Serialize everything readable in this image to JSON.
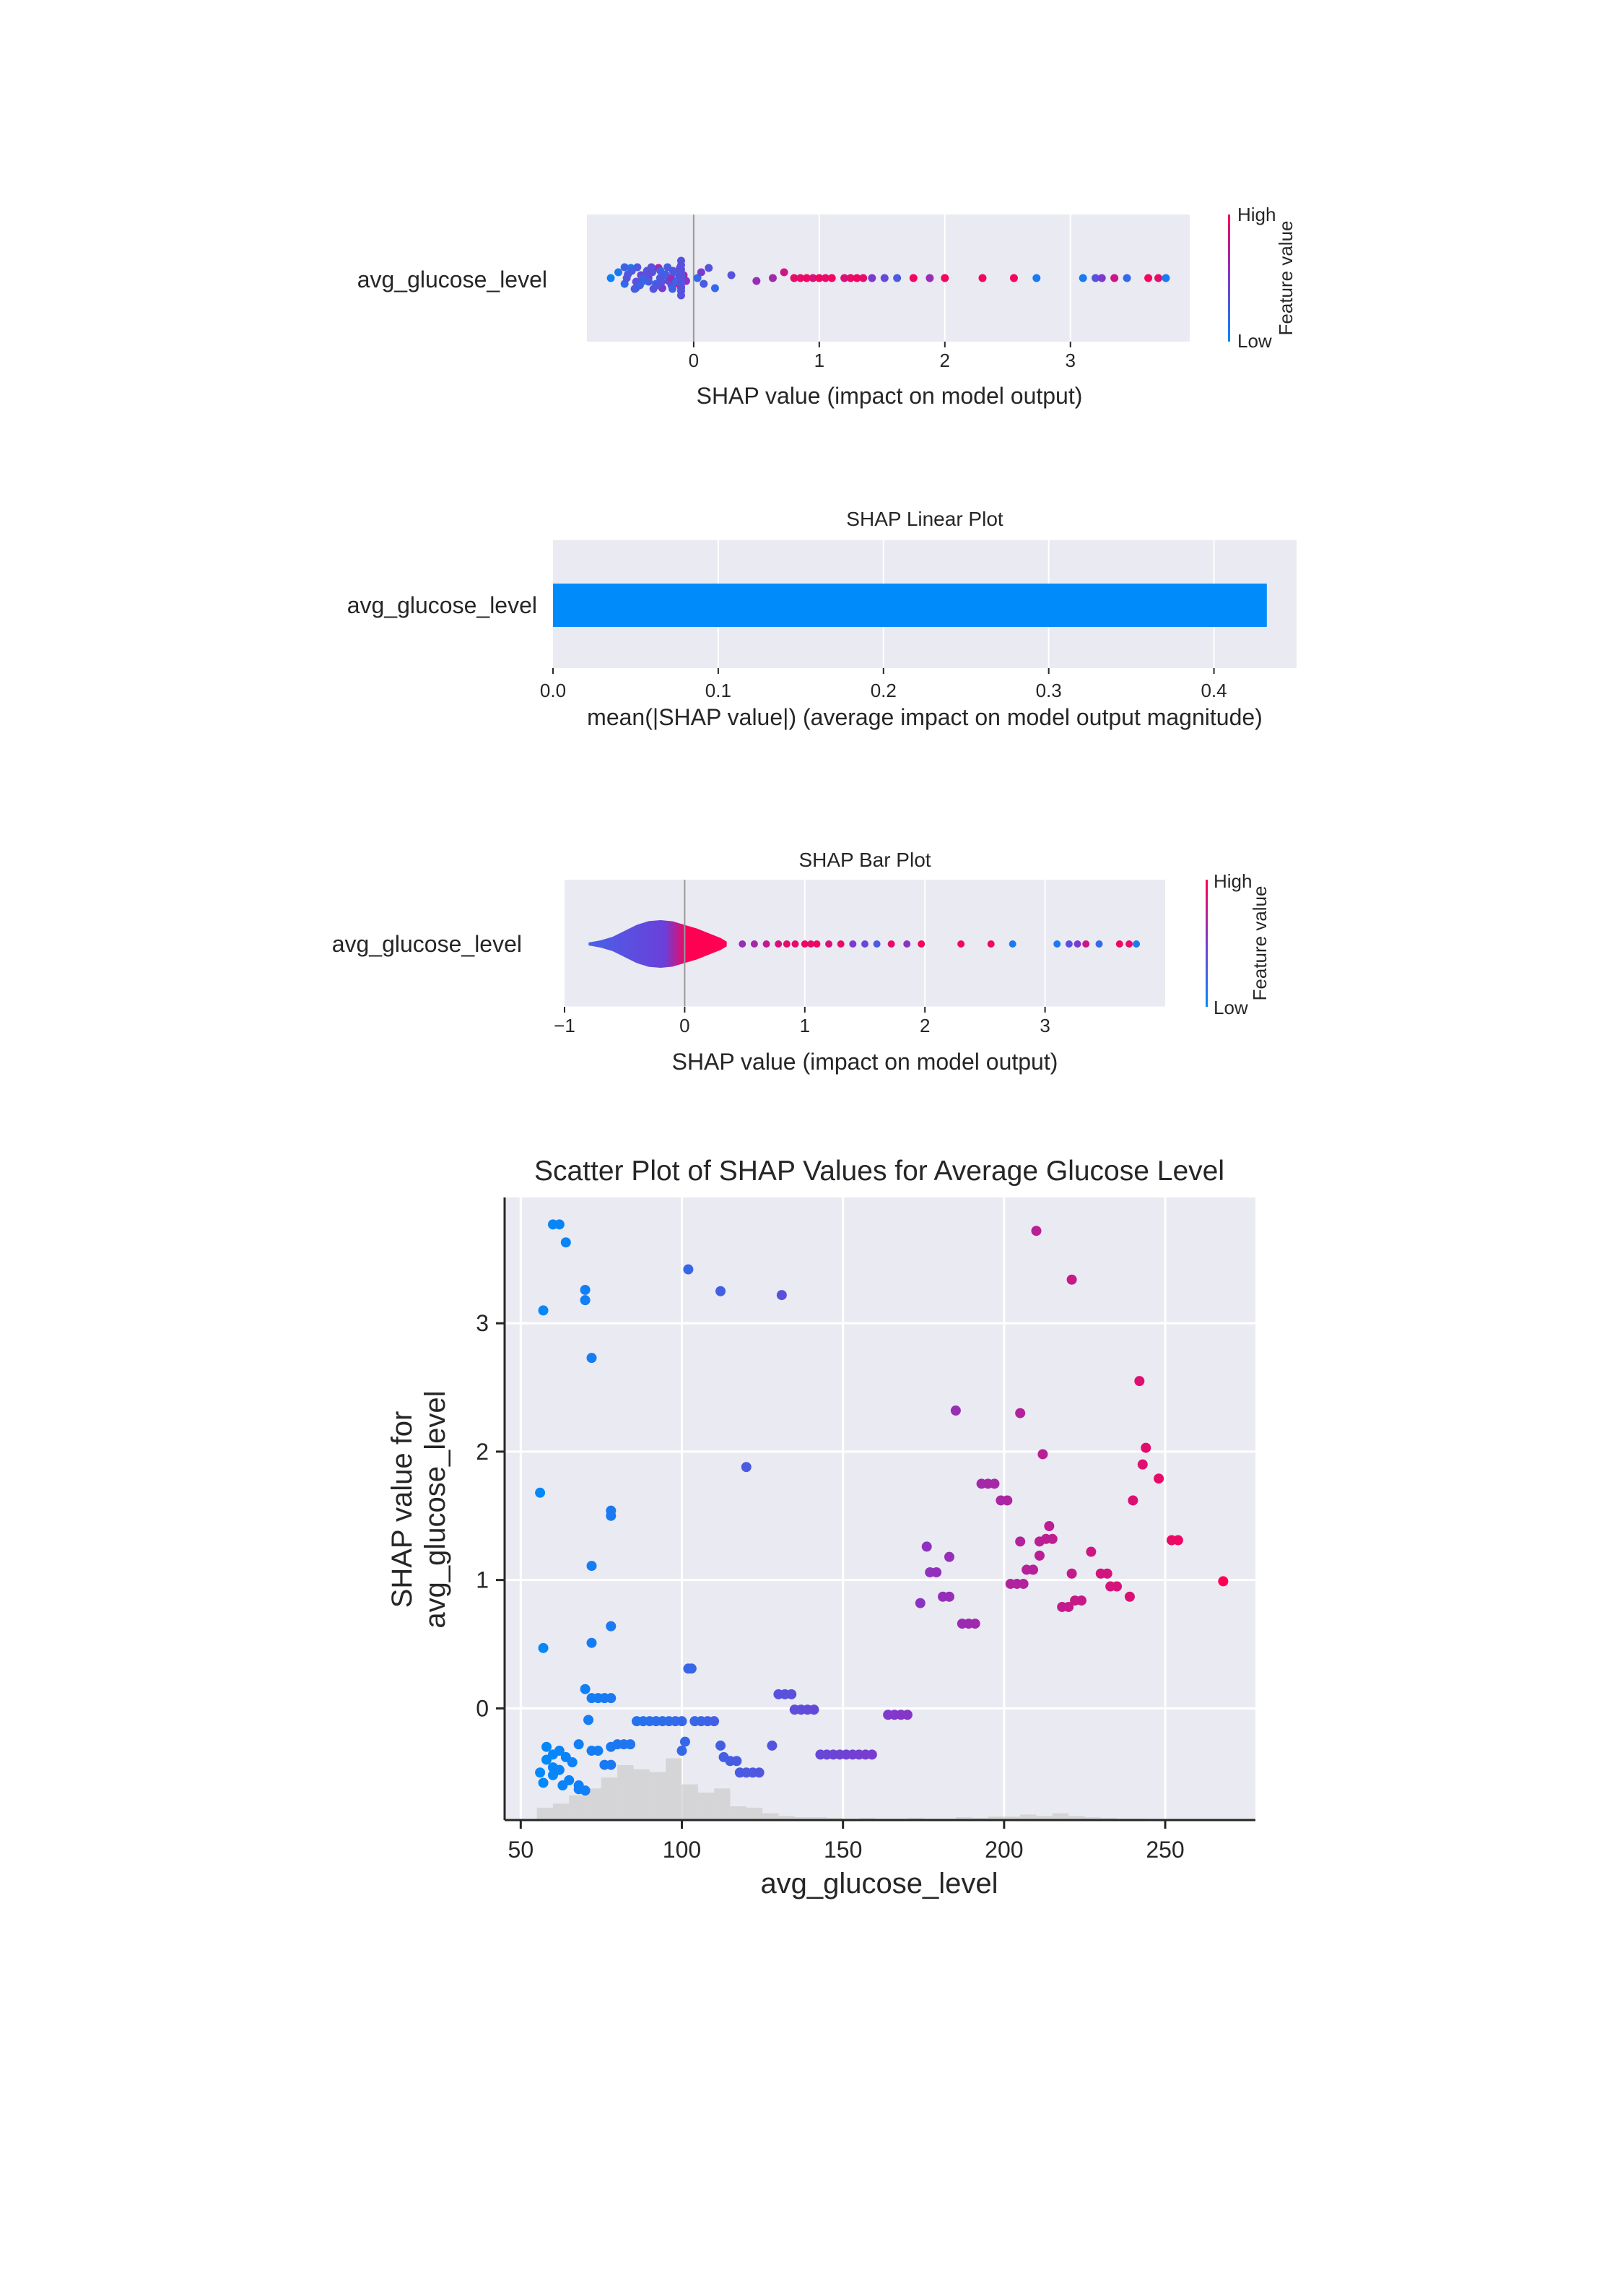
{
  "colors": {
    "low": "#008afb",
    "mid": "#7c3ad0",
    "high": "#ff0052",
    "panel_bg": "#eaeaf2",
    "grid": "#ffffff",
    "zero_line": "#999999",
    "bar": "#008bfb",
    "hist": "#cccccc"
  },
  "chart_data": [
    {
      "type": "scatter",
      "subtype": "beeswarm",
      "title": "",
      "feature": "avg_glucose_level",
      "xlabel": "SHAP value (impact on model output)",
      "xlim": [
        -0.85,
        3.95
      ],
      "xticks": [
        "0",
        "1",
        "2",
        "3"
      ],
      "xtick_values": [
        0,
        1,
        2,
        3
      ],
      "colorbar": {
        "label": "Feature value",
        "high": "High",
        "low": "Low"
      },
      "points": [
        [
          -0.66,
          0.05
        ],
        [
          -0.6,
          0.1
        ],
        [
          -0.55,
          0.2
        ],
        [
          -0.5,
          0.1
        ],
        [
          -0.46,
          0.3
        ],
        [
          -0.42,
          0.45
        ],
        [
          -0.4,
          0.15
        ],
        [
          -0.36,
          0.55
        ],
        [
          -0.33,
          0.35
        ],
        [
          -0.3,
          0.2
        ],
        [
          -0.28,
          0.65
        ],
        [
          -0.25,
          0.5
        ],
        [
          -0.22,
          0.3
        ],
        [
          -0.2,
          0.4
        ],
        [
          -0.18,
          0.6
        ],
        [
          -0.15,
          0.25
        ],
        [
          -0.12,
          0.85
        ],
        [
          -0.11,
          0.45
        ],
        [
          -0.1,
          0.15
        ],
        [
          -0.08,
          0.7
        ],
        [
          -0.06,
          0.55
        ],
        [
          0.03,
          0.2
        ],
        [
          0.06,
          0.5
        ],
        [
          0.08,
          0.3
        ],
        [
          0.12,
          0.35
        ],
        [
          0.17,
          0.2
        ],
        [
          0.3,
          0.35
        ],
        [
          0.5,
          0.6
        ],
        [
          0.63,
          0.65
        ],
        [
          0.72,
          0.8
        ],
        [
          0.8,
          0.9
        ],
        [
          0.85,
          0.9
        ],
        [
          0.9,
          0.95
        ],
        [
          0.95,
          0.85
        ],
        [
          1.0,
          0.95
        ],
        [
          1.05,
          0.9
        ],
        [
          1.1,
          0.95
        ],
        [
          1.2,
          0.85
        ],
        [
          1.25,
          0.9
        ],
        [
          1.3,
          0.95
        ],
        [
          1.35,
          0.9
        ],
        [
          1.42,
          0.5
        ],
        [
          1.52,
          0.4
        ],
        [
          1.62,
          0.3
        ],
        [
          1.75,
          0.95
        ],
        [
          1.88,
          0.6
        ],
        [
          2.0,
          0.95
        ],
        [
          2.3,
          0.95
        ],
        [
          2.55,
          0.95
        ],
        [
          2.73,
          0.1
        ],
        [
          3.1,
          0.1
        ],
        [
          3.2,
          0.35
        ],
        [
          3.25,
          0.5
        ],
        [
          3.35,
          0.8
        ],
        [
          3.45,
          0.2
        ],
        [
          3.62,
          0.95
        ],
        [
          3.7,
          0.9
        ],
        [
          3.76,
          0.1
        ]
      ]
    },
    {
      "type": "bar",
      "title": "SHAP Linear Plot",
      "categories": [
        "avg_glucose_level"
      ],
      "values": [
        0.432
      ],
      "xlabel": "mean(|SHAP value|) (average impact on model output magnitude)",
      "xlim": [
        0,
        0.45
      ],
      "xticks": [
        "0.0",
        "0.1",
        "0.2",
        "0.3",
        "0.4"
      ],
      "xtick_values": [
        0,
        0.1,
        0.2,
        0.3,
        0.4
      ]
    },
    {
      "type": "area",
      "subtype": "violin",
      "title": "SHAP Bar Plot",
      "feature": "avg_glucose_level",
      "xlabel": "SHAP value (impact on model output)",
      "xlim": [
        -1,
        4
      ],
      "xticks": [
        "−1",
        "0",
        "1",
        "2",
        "3"
      ],
      "xtick_values": [
        -1,
        0,
        1,
        2,
        3
      ],
      "colorbar": {
        "label": "Feature value",
        "high": "High",
        "low": "Low"
      },
      "density": [
        [
          -0.8,
          0.06
        ],
        [
          -0.7,
          0.15
        ],
        [
          -0.6,
          0.3
        ],
        [
          -0.5,
          0.55
        ],
        [
          -0.4,
          0.8
        ],
        [
          -0.3,
          0.96
        ],
        [
          -0.2,
          1.0
        ],
        [
          -0.1,
          0.95
        ],
        [
          0.0,
          0.8
        ],
        [
          0.1,
          0.65
        ],
        [
          0.2,
          0.45
        ],
        [
          0.3,
          0.25
        ],
        [
          0.35,
          0.1
        ]
      ],
      "tail_points": [
        [
          0.48,
          0.6
        ],
        [
          0.58,
          0.65
        ],
        [
          0.68,
          0.75
        ],
        [
          0.78,
          0.85
        ],
        [
          0.85,
          0.9
        ],
        [
          0.92,
          0.9
        ],
        [
          1.0,
          0.95
        ],
        [
          1.05,
          0.9
        ],
        [
          1.1,
          0.95
        ],
        [
          1.2,
          0.85
        ],
        [
          1.3,
          0.9
        ],
        [
          1.4,
          0.5
        ],
        [
          1.5,
          0.4
        ],
        [
          1.6,
          0.3
        ],
        [
          1.72,
          0.9
        ],
        [
          1.85,
          0.55
        ],
        [
          1.97,
          0.95
        ],
        [
          2.3,
          0.95
        ],
        [
          2.55,
          0.95
        ],
        [
          2.73,
          0.1
        ],
        [
          3.1,
          0.1
        ],
        [
          3.2,
          0.35
        ],
        [
          3.27,
          0.5
        ],
        [
          3.34,
          0.8
        ],
        [
          3.45,
          0.2
        ],
        [
          3.62,
          0.95
        ],
        [
          3.7,
          0.9
        ],
        [
          3.76,
          0.1
        ]
      ]
    },
    {
      "type": "scatter",
      "title": "Scatter Plot of SHAP Values for Average Glucose Level",
      "xlabel": "avg_glucose_level",
      "ylabel": "SHAP value for\navg_glucose_level",
      "xlim": [
        45,
        278
      ],
      "ylim": [
        -0.87,
        3.98
      ],
      "xticks": [
        "50",
        "100",
        "150",
        "200",
        "250"
      ],
      "xtick_values": [
        50,
        100,
        150,
        200,
        250
      ],
      "yticks": [
        "0",
        "1",
        "2",
        "3"
      ],
      "ytick_values": [
        0,
        1,
        2,
        3
      ],
      "points": [
        [
          60,
          3.77
        ],
        [
          62,
          3.77
        ],
        [
          64,
          3.63
        ],
        [
          57,
          3.1
        ],
        [
          70,
          3.26
        ],
        [
          70,
          3.18
        ],
        [
          72,
          2.73
        ],
        [
          56,
          1.68
        ],
        [
          78,
          1.54
        ],
        [
          78,
          1.5
        ],
        [
          72,
          1.11
        ],
        [
          57,
          0.47
        ],
        [
          72,
          0.51
        ],
        [
          78,
          0.64
        ],
        [
          70,
          0.15
        ],
        [
          72,
          0.08
        ],
        [
          74,
          0.08
        ],
        [
          76,
          0.08
        ],
        [
          78,
          0.08
        ],
        [
          71,
          -0.09
        ],
        [
          68,
          -0.28
        ],
        [
          72,
          -0.33
        ],
        [
          74,
          -0.33
        ],
        [
          78,
          -0.3
        ],
        [
          80,
          -0.28
        ],
        [
          82,
          -0.28
        ],
        [
          84,
          -0.28
        ],
        [
          58,
          -0.3
        ],
        [
          60,
          -0.36
        ],
        [
          62,
          -0.33
        ],
        [
          64,
          -0.38
        ],
        [
          66,
          -0.42
        ],
        [
          58,
          -0.4
        ],
        [
          60,
          -0.46
        ],
        [
          56,
          -0.5
        ],
        [
          62,
          -0.48
        ],
        [
          65,
          -0.56
        ],
        [
          60,
          -0.52
        ],
        [
          57,
          -0.58
        ],
        [
          63,
          -0.6
        ],
        [
          68,
          -0.63
        ],
        [
          70,
          -0.64
        ],
        [
          76,
          -0.44
        ],
        [
          78,
          -0.44
        ],
        [
          68,
          -0.6
        ],
        [
          86,
          -0.1
        ],
        [
          88,
          -0.1
        ],
        [
          90,
          -0.1
        ],
        [
          92,
          -0.1
        ],
        [
          94,
          -0.1
        ],
        [
          96,
          -0.1
        ],
        [
          98,
          -0.1
        ],
        [
          100,
          -0.1
        ],
        [
          104,
          -0.1
        ],
        [
          106,
          -0.1
        ],
        [
          108,
          -0.1
        ],
        [
          110,
          -0.1
        ],
        [
          101,
          -0.26
        ],
        [
          100,
          -0.33
        ],
        [
          102,
          0.31
        ],
        [
          103,
          0.31
        ],
        [
          102,
          3.42
        ],
        [
          112,
          3.25
        ],
        [
          120,
          1.88
        ],
        [
          131,
          3.22
        ],
        [
          112,
          -0.29
        ],
        [
          113,
          -0.38
        ],
        [
          115,
          -0.41
        ],
        [
          117,
          -0.41
        ],
        [
          118,
          -0.5
        ],
        [
          120,
          -0.5
        ],
        [
          122,
          -0.5
        ],
        [
          124,
          -0.5
        ],
        [
          130,
          0.11
        ],
        [
          132,
          0.11
        ],
        [
          134,
          0.11
        ],
        [
          128,
          -0.29
        ],
        [
          135,
          -0.01
        ],
        [
          137,
          -0.01
        ],
        [
          139,
          -0.01
        ],
        [
          141,
          -0.01
        ],
        [
          143,
          -0.36
        ],
        [
          145,
          -0.36
        ],
        [
          147,
          -0.36
        ],
        [
          149,
          -0.36
        ],
        [
          151,
          -0.36
        ],
        [
          153,
          -0.36
        ],
        [
          155,
          -0.36
        ],
        [
          157,
          -0.36
        ],
        [
          159,
          -0.36
        ],
        [
          164,
          -0.05
        ],
        [
          166,
          -0.05
        ],
        [
          168,
          -0.05
        ],
        [
          170,
          -0.05
        ],
        [
          185,
          2.32
        ],
        [
          205,
          2.3
        ],
        [
          210,
          3.72
        ],
        [
          221,
          3.34
        ],
        [
          212,
          1.98
        ],
        [
          242,
          2.55
        ],
        [
          243,
          1.9
        ],
        [
          244,
          2.03
        ],
        [
          248,
          1.79
        ],
        [
          240,
          1.62
        ],
        [
          174,
          0.82
        ],
        [
          177,
          1.06
        ],
        [
          179,
          1.06
        ],
        [
          181,
          0.87
        ],
        [
          183,
          0.87
        ],
        [
          176,
          1.26
        ],
        [
          183,
          1.18
        ],
        [
          187,
          0.66
        ],
        [
          189,
          0.66
        ],
        [
          191,
          0.66
        ],
        [
          193,
          1.75
        ],
        [
          195,
          1.75
        ],
        [
          197,
          1.75
        ],
        [
          199,
          1.62
        ],
        [
          201,
          1.62
        ],
        [
          202,
          0.97
        ],
        [
          204,
          0.97
        ],
        [
          206,
          0.97
        ],
        [
          205,
          1.3
        ],
        [
          207,
          1.08
        ],
        [
          209,
          1.08
        ],
        [
          211,
          1.19
        ],
        [
          211,
          1.3
        ],
        [
          213,
          1.32
        ],
        [
          215,
          1.32
        ],
        [
          214,
          1.42
        ],
        [
          218,
          0.79
        ],
        [
          220,
          0.79
        ],
        [
          222,
          0.84
        ],
        [
          224,
          0.84
        ],
        [
          221,
          1.05
        ],
        [
          227,
          1.22
        ],
        [
          230,
          1.05
        ],
        [
          232,
          1.05
        ],
        [
          233,
          0.95
        ],
        [
          235,
          0.95
        ],
        [
          239,
          0.87
        ],
        [
          252,
          1.31
        ],
        [
          254,
          1.31
        ],
        [
          268,
          0.99
        ]
      ],
      "histogram": [
        [
          55,
          0.18
        ],
        [
          60,
          0.24
        ],
        [
          65,
          0.36
        ],
        [
          70,
          0.46
        ],
        [
          75,
          0.62
        ],
        [
          80,
          0.8
        ],
        [
          85,
          0.74
        ],
        [
          90,
          0.7
        ],
        [
          95,
          0.9
        ],
        [
          100,
          0.52
        ],
        [
          105,
          0.4
        ],
        [
          110,
          0.46
        ],
        [
          115,
          0.2
        ],
        [
          120,
          0.18
        ],
        [
          125,
          0.1
        ],
        [
          130,
          0.06
        ],
        [
          135,
          0.04
        ],
        [
          140,
          0.04
        ],
        [
          145,
          0.03
        ],
        [
          150,
          0.02
        ],
        [
          155,
          0.03
        ],
        [
          160,
          0.02
        ],
        [
          165,
          0.02
        ],
        [
          170,
          0.03
        ],
        [
          175,
          0.02
        ],
        [
          180,
          0.02
        ],
        [
          185,
          0.04
        ],
        [
          190,
          0.03
        ],
        [
          195,
          0.05
        ],
        [
          200,
          0.05
        ],
        [
          205,
          0.08
        ],
        [
          210,
          0.06
        ],
        [
          215,
          0.1
        ],
        [
          220,
          0.06
        ],
        [
          225,
          0.04
        ],
        [
          230,
          0.03
        ],
        [
          235,
          0.02
        ],
        [
          240,
          0.02
        ],
        [
          245,
          0.01
        ]
      ]
    }
  ]
}
